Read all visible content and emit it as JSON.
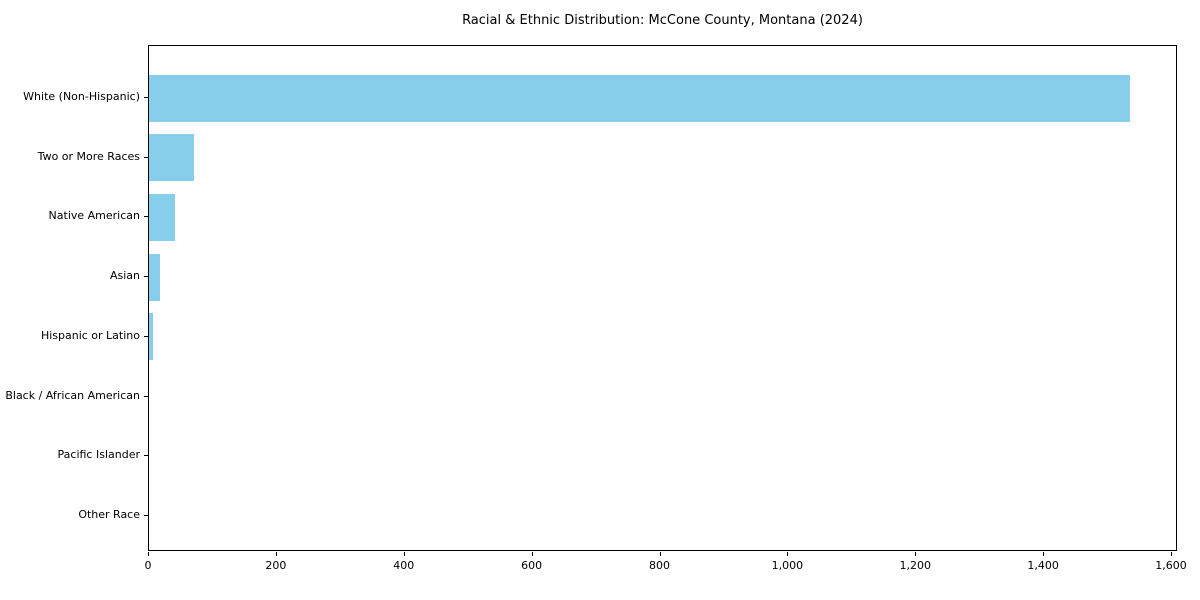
{
  "title": "Racial & Ethnic Distribution: McCone County, Montana (2024)",
  "chart_data": {
    "type": "bar",
    "orientation": "horizontal",
    "title": "Racial & Ethnic Distribution: McCone County, Montana (2024)",
    "xlabel": "",
    "ylabel": "",
    "categories": [
      "White (Non-Hispanic)",
      "Two or More Races",
      "Native American",
      "Asian",
      "Hispanic or Latino",
      "Black / African American",
      "Pacific Islander",
      "Other Race"
    ],
    "values": [
      1535,
      70,
      41,
      17,
      6,
      0,
      0,
      0
    ],
    "xlim": [
      0,
      1600
    ],
    "x_ticks": [
      0,
      200,
      400,
      600,
      800,
      1000,
      1200,
      1400,
      1600
    ],
    "x_tick_labels": [
      "0",
      "200",
      "400",
      "600",
      "800",
      "1,000",
      "1,200",
      "1,400",
      "1,600"
    ],
    "bar_color": "#87CEEB",
    "grid": false,
    "legend": null
  }
}
